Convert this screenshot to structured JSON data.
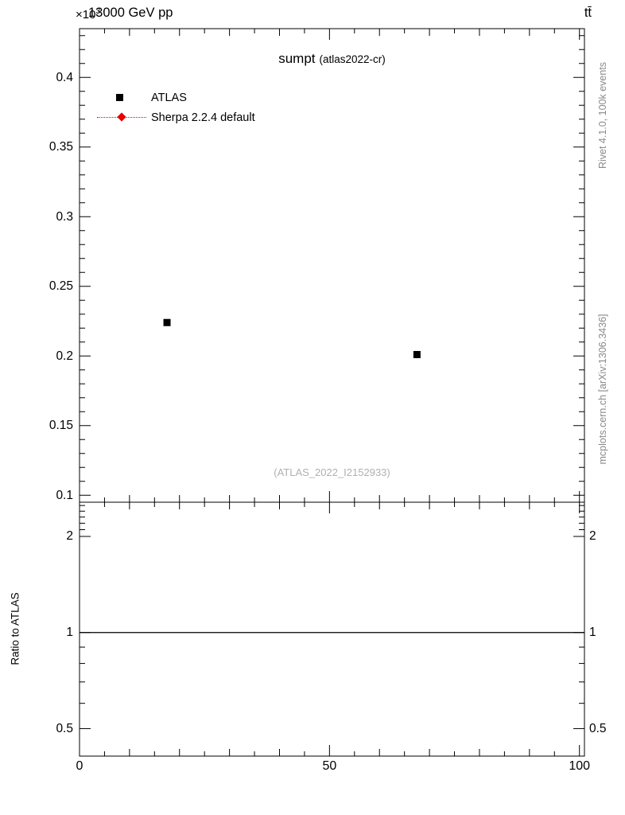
{
  "page": {
    "background": "#ffffff"
  },
  "header": {
    "exponent_base": "×10",
    "exponent_power": "3",
    "beam_label": "13000 GeV pp",
    "process_label": "tt̄"
  },
  "main_panel": {
    "title": "sumpt",
    "title_suffix": "(atlas2022-cr)",
    "watermark": "(ATLAS_2022_I2152933)",
    "legend": [
      {
        "label": "ATLAS",
        "marker": "square",
        "color": "#000000"
      },
      {
        "label": "Sherpa 2.2.4 default",
        "marker": "diamond",
        "color": "#e60000",
        "line_style": "dotted"
      }
    ]
  },
  "right_margin": {
    "top_text": "Rivet 4.1.0, 100k events",
    "bottom_text": "mcplots.cern.ch [arXiv:1306.3436]"
  },
  "ratio_panel": {
    "ylabel": "Ratio to ATLAS"
  },
  "chart_data": {
    "type": "scatter",
    "title": "sumpt (atlas2022-cr)",
    "y_scale_label": "×10^3",
    "xlim": [
      0,
      101
    ],
    "main_ylim": [
      0.095,
      0.435
    ],
    "main_yticks": [
      0.1,
      0.15,
      0.2,
      0.25,
      0.3,
      0.35,
      0.4
    ],
    "xticks": [
      0,
      50,
      100
    ],
    "x_minor_step": 5,
    "grid": false,
    "legend_position": "top-left",
    "series": [
      {
        "name": "ATLAS",
        "marker": "square",
        "color": "#000000",
        "points": [
          {
            "x": 17.5,
            "y": 0.224
          },
          {
            "x": 67.5,
            "y": 0.201
          }
        ]
      },
      {
        "name": "Sherpa 2.2.4 default",
        "marker": "diamond",
        "color": "#e60000",
        "line_style": "dotted",
        "points": []
      }
    ],
    "ratio": {
      "ylabel": "Ratio to ATLAS",
      "scale": "log",
      "ylim": [
        0.41,
        2.56
      ],
      "yticks": [
        0.5,
        1,
        2
      ],
      "minor_ticks": [
        0.4,
        0.6,
        0.7,
        0.8,
        0.9,
        2.1,
        2.2,
        2.3,
        2.4,
        2.5
      ],
      "reference_line": 1
    }
  }
}
